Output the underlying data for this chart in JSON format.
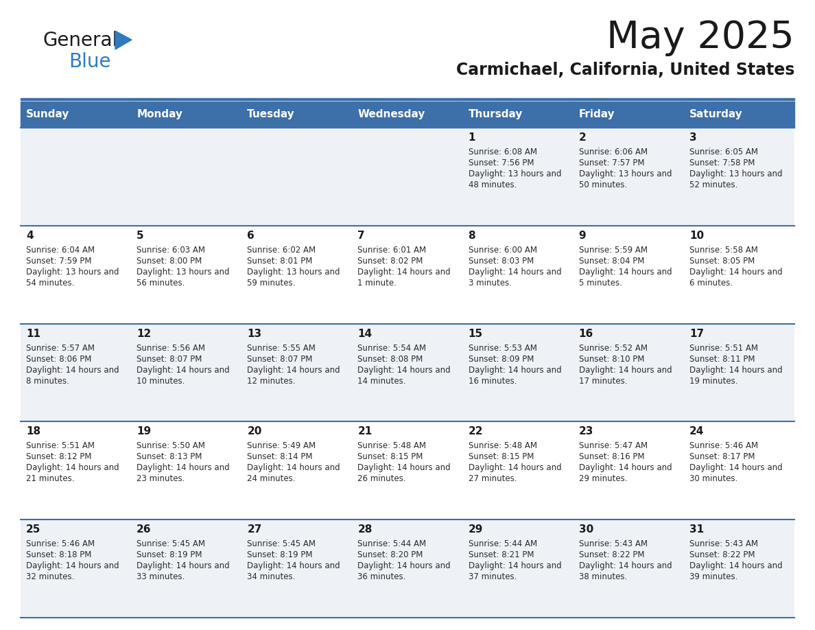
{
  "title": "May 2025",
  "subtitle": "Carmichael, California, United States",
  "days_of_week": [
    "Sunday",
    "Monday",
    "Tuesday",
    "Wednesday",
    "Thursday",
    "Friday",
    "Saturday"
  ],
  "header_bg": "#3d6fa8",
  "header_text": "#ffffff",
  "row_bg_odd": "#eef2f7",
  "row_bg_even": "#ffffff",
  "border_color": "#3d6fa8",
  "title_color": "#1a1a1a",
  "subtitle_color": "#1a1a1a",
  "day_number_color": "#1a1a1a",
  "info_text_color": "#2a2a2a",
  "logo_general_color": "#1a1a1a",
  "logo_blue_color": "#2e7bbf",
  "calendar_data": [
    {
      "day": 1,
      "col": 4,
      "row": 0,
      "sunrise": "6:08 AM",
      "sunset": "7:56 PM",
      "daylight_h": "13 hours",
      "daylight_m": "48 minutes."
    },
    {
      "day": 2,
      "col": 5,
      "row": 0,
      "sunrise": "6:06 AM",
      "sunset": "7:57 PM",
      "daylight_h": "13 hours",
      "daylight_m": "50 minutes."
    },
    {
      "day": 3,
      "col": 6,
      "row": 0,
      "sunrise": "6:05 AM",
      "sunset": "7:58 PM",
      "daylight_h": "13 hours",
      "daylight_m": "52 minutes."
    },
    {
      "day": 4,
      "col": 0,
      "row": 1,
      "sunrise": "6:04 AM",
      "sunset": "7:59 PM",
      "daylight_h": "13 hours",
      "daylight_m": "54 minutes."
    },
    {
      "day": 5,
      "col": 1,
      "row": 1,
      "sunrise": "6:03 AM",
      "sunset": "8:00 PM",
      "daylight_h": "13 hours",
      "daylight_m": "56 minutes."
    },
    {
      "day": 6,
      "col": 2,
      "row": 1,
      "sunrise": "6:02 AM",
      "sunset": "8:01 PM",
      "daylight_h": "13 hours",
      "daylight_m": "59 minutes."
    },
    {
      "day": 7,
      "col": 3,
      "row": 1,
      "sunrise": "6:01 AM",
      "sunset": "8:02 PM",
      "daylight_h": "14 hours",
      "daylight_m": "1 minute."
    },
    {
      "day": 8,
      "col": 4,
      "row": 1,
      "sunrise": "6:00 AM",
      "sunset": "8:03 PM",
      "daylight_h": "14 hours",
      "daylight_m": "3 minutes."
    },
    {
      "day": 9,
      "col": 5,
      "row": 1,
      "sunrise": "5:59 AM",
      "sunset": "8:04 PM",
      "daylight_h": "14 hours",
      "daylight_m": "5 minutes."
    },
    {
      "day": 10,
      "col": 6,
      "row": 1,
      "sunrise": "5:58 AM",
      "sunset": "8:05 PM",
      "daylight_h": "14 hours",
      "daylight_m": "6 minutes."
    },
    {
      "day": 11,
      "col": 0,
      "row": 2,
      "sunrise": "5:57 AM",
      "sunset": "8:06 PM",
      "daylight_h": "14 hours",
      "daylight_m": "8 minutes."
    },
    {
      "day": 12,
      "col": 1,
      "row": 2,
      "sunrise": "5:56 AM",
      "sunset": "8:07 PM",
      "daylight_h": "14 hours",
      "daylight_m": "10 minutes."
    },
    {
      "day": 13,
      "col": 2,
      "row": 2,
      "sunrise": "5:55 AM",
      "sunset": "8:07 PM",
      "daylight_h": "14 hours",
      "daylight_m": "12 minutes."
    },
    {
      "day": 14,
      "col": 3,
      "row": 2,
      "sunrise": "5:54 AM",
      "sunset": "8:08 PM",
      "daylight_h": "14 hours",
      "daylight_m": "14 minutes."
    },
    {
      "day": 15,
      "col": 4,
      "row": 2,
      "sunrise": "5:53 AM",
      "sunset": "8:09 PM",
      "daylight_h": "14 hours",
      "daylight_m": "16 minutes."
    },
    {
      "day": 16,
      "col": 5,
      "row": 2,
      "sunrise": "5:52 AM",
      "sunset": "8:10 PM",
      "daylight_h": "14 hours",
      "daylight_m": "17 minutes."
    },
    {
      "day": 17,
      "col": 6,
      "row": 2,
      "sunrise": "5:51 AM",
      "sunset": "8:11 PM",
      "daylight_h": "14 hours",
      "daylight_m": "19 minutes."
    },
    {
      "day": 18,
      "col": 0,
      "row": 3,
      "sunrise": "5:51 AM",
      "sunset": "8:12 PM",
      "daylight_h": "14 hours",
      "daylight_m": "21 minutes."
    },
    {
      "day": 19,
      "col": 1,
      "row": 3,
      "sunrise": "5:50 AM",
      "sunset": "8:13 PM",
      "daylight_h": "14 hours",
      "daylight_m": "23 minutes."
    },
    {
      "day": 20,
      "col": 2,
      "row": 3,
      "sunrise": "5:49 AM",
      "sunset": "8:14 PM",
      "daylight_h": "14 hours",
      "daylight_m": "24 minutes."
    },
    {
      "day": 21,
      "col": 3,
      "row": 3,
      "sunrise": "5:48 AM",
      "sunset": "8:15 PM",
      "daylight_h": "14 hours",
      "daylight_m": "26 minutes."
    },
    {
      "day": 22,
      "col": 4,
      "row": 3,
      "sunrise": "5:48 AM",
      "sunset": "8:15 PM",
      "daylight_h": "14 hours",
      "daylight_m": "27 minutes."
    },
    {
      "day": 23,
      "col": 5,
      "row": 3,
      "sunrise": "5:47 AM",
      "sunset": "8:16 PM",
      "daylight_h": "14 hours",
      "daylight_m": "29 minutes."
    },
    {
      "day": 24,
      "col": 6,
      "row": 3,
      "sunrise": "5:46 AM",
      "sunset": "8:17 PM",
      "daylight_h": "14 hours",
      "daylight_m": "30 minutes."
    },
    {
      "day": 25,
      "col": 0,
      "row": 4,
      "sunrise": "5:46 AM",
      "sunset": "8:18 PM",
      "daylight_h": "14 hours",
      "daylight_m": "32 minutes."
    },
    {
      "day": 26,
      "col": 1,
      "row": 4,
      "sunrise": "5:45 AM",
      "sunset": "8:19 PM",
      "daylight_h": "14 hours",
      "daylight_m": "33 minutes."
    },
    {
      "day": 27,
      "col": 2,
      "row": 4,
      "sunrise": "5:45 AM",
      "sunset": "8:19 PM",
      "daylight_h": "14 hours",
      "daylight_m": "34 minutes."
    },
    {
      "day": 28,
      "col": 3,
      "row": 4,
      "sunrise": "5:44 AM",
      "sunset": "8:20 PM",
      "daylight_h": "14 hours",
      "daylight_m": "36 minutes."
    },
    {
      "day": 29,
      "col": 4,
      "row": 4,
      "sunrise": "5:44 AM",
      "sunset": "8:21 PM",
      "daylight_h": "14 hours",
      "daylight_m": "37 minutes."
    },
    {
      "day": 30,
      "col": 5,
      "row": 4,
      "sunrise": "5:43 AM",
      "sunset": "8:22 PM",
      "daylight_h": "14 hours",
      "daylight_m": "38 minutes."
    },
    {
      "day": 31,
      "col": 6,
      "row": 4,
      "sunrise": "5:43 AM",
      "sunset": "8:22 PM",
      "daylight_h": "14 hours",
      "daylight_m": "39 minutes."
    }
  ]
}
